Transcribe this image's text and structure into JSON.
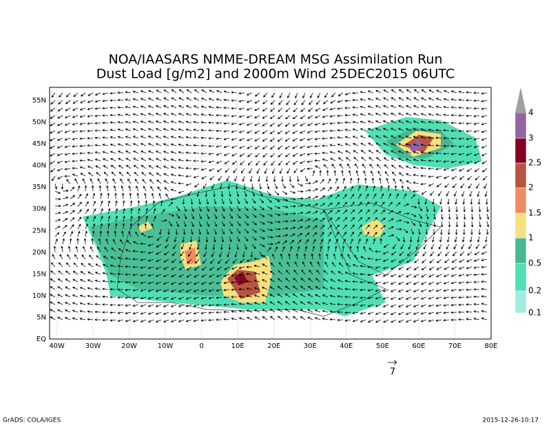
{
  "title": [
    "NOA/IAASARS NMME-DREAM MSG Assimilation Run",
    "Dust Load [g/m2] and 2000m Wind 25DEC2015 06UTC"
  ],
  "x_axis": [
    "40W",
    "30W",
    "20W",
    "10W",
    "0",
    "10E",
    "20E",
    "30E",
    "40E",
    "50E",
    "60E",
    "70E",
    "80E"
  ],
  "y_axis": [
    "EQ",
    "5N",
    "10N",
    "15N",
    "20N",
    "25N",
    "30N",
    "35N",
    "40N",
    "45N",
    "50N",
    "55N"
  ],
  "colorbar": [
    {
      "label": "0.1",
      "color": "#a0ece0"
    },
    {
      "label": "0.2",
      "color": "#50e0b4"
    },
    {
      "label": "0.5",
      "color": "#48b890"
    },
    {
      "label": "1",
      "color": "#f8e080"
    },
    {
      "label": "1.5",
      "color": "#f08c64"
    },
    {
      "label": "2",
      "color": "#b85440"
    },
    {
      "label": "2.5",
      "color": "#880020"
    },
    {
      "label": "3",
      "color": "#9464a4"
    },
    {
      "label": "4",
      "color": "#a0a0a0"
    }
  ],
  "wind_reference": "7",
  "footer_left": "GrADS: COLA/IGES",
  "footer_right": "2015-12-26-10:17"
}
